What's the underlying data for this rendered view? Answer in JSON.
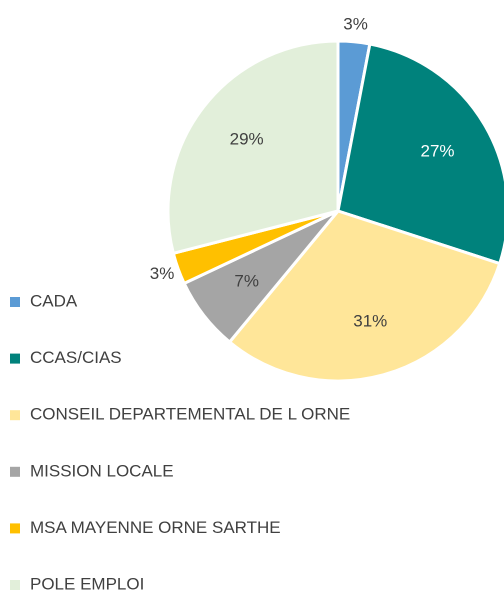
{
  "chart_data": {
    "type": "pie",
    "categories": [
      "CADA",
      "CCAS/CIAS",
      "CONSEIL DEPARTEMENTAL DE L ORNE",
      "MISSION LOCALE",
      "MSA MAYENNE ORNE SARTHE",
      "POLE EMPLOI"
    ],
    "values": [
      3,
      27,
      31,
      7,
      3,
      29
    ],
    "value_labels": [
      "3%",
      "27%",
      "31%",
      "7%",
      "3%",
      "29%"
    ],
    "colors": [
      "#5b9bd5",
      "#00827c",
      "#ffe699",
      "#a5a5a5",
      "#ffc000",
      "#e2efda"
    ],
    "legend": "left"
  }
}
